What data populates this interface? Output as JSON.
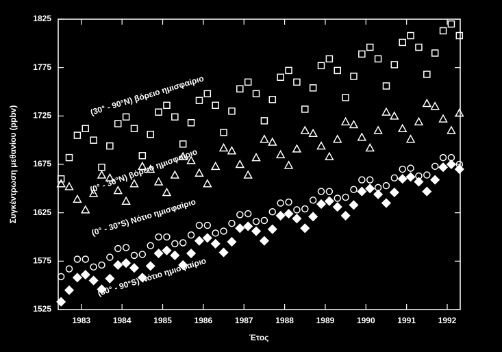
{
  "chart_data": {
    "type": "scatter",
    "x_label": "Έτος",
    "y_label": "Συγκέντρωση μεθανίου (ppbv)",
    "xlim": [
      1982.43,
      1992.32
    ],
    "ylim": [
      1525,
      1825
    ],
    "xticks": [
      1983,
      1984,
      1985,
      1986,
      1987,
      1988,
      1989,
      1990,
      1991,
      1992
    ],
    "yticks": [
      1525,
      1575,
      1625,
      1675,
      1725,
      1775,
      1825
    ],
    "x": [
      1982.5,
      1982.7,
      1982.9,
      1983.1,
      1983.3,
      1983.5,
      1983.7,
      1983.9,
      1984.1,
      1984.3,
      1984.5,
      1984.7,
      1984.9,
      1985.1,
      1985.3,
      1985.5,
      1985.7,
      1985.9,
      1986.1,
      1986.3,
      1986.5,
      1986.7,
      1986.9,
      1987.1,
      1987.3,
      1987.5,
      1987.7,
      1987.9,
      1988.1,
      1988.3,
      1988.5,
      1988.7,
      1988.9,
      1989.1,
      1989.3,
      1989.5,
      1989.7,
      1989.9,
      1990.1,
      1990.3,
      1990.5,
      1990.7,
      1990.9,
      1991.1,
      1991.3,
      1991.5,
      1991.7,
      1991.9,
      1992.1,
      1992.3
    ],
    "series": [
      {
        "name": "(30° - 90°N) βόρειο ημισφαίριο",
        "color": "#ffffff",
        "marker": "square",
        "filled": false,
        "values": [
          1660,
          1682,
          1705,
          1712,
          1700,
          1672,
          1694,
          1717,
          1724,
          1712,
          1684,
          1706,
          1729,
          1736,
          1724,
          1696,
          1718,
          1741,
          1748,
          1736,
          1708,
          1730,
          1753,
          1760,
          1748,
          1720,
          1742,
          1765,
          1772,
          1760,
          1732,
          1754,
          1777,
          1784,
          1772,
          1744,
          1766,
          1789,
          1796,
          1784,
          1756,
          1778,
          1801,
          1808,
          1796,
          1768,
          1790,
          1813,
          1820,
          1808
        ]
      },
      {
        "name": "(0° - 30°N) βόρειο ημισφαίριο",
        "color": "#ffffff",
        "marker": "triangle",
        "filled": false,
        "values": [
          1655,
          1652,
          1639,
          1628,
          1645,
          1664,
          1661,
          1648,
          1637,
          1655,
          1673,
          1670,
          1657,
          1646,
          1664,
          1683,
          1679,
          1666,
          1655,
          1673,
          1692,
          1689,
          1675,
          1664,
          1682,
          1701,
          1698,
          1685,
          1674,
          1691,
          1710,
          1707,
          1694,
          1683,
          1701,
          1719,
          1716,
          1703,
          1692,
          1710,
          1729,
          1725,
          1712,
          1701,
          1719,
          1738,
          1735,
          1722,
          1710,
          1728
        ]
      },
      {
        "name": "(0° - 30°S) Νότιο ημισφαίριο",
        "color": "#ffffff",
        "marker": "circle",
        "filled": false,
        "values": [
          1559,
          1567,
          1577,
          1577,
          1569,
          1571,
          1579,
          1588,
          1589,
          1581,
          1582,
          1591,
          1600,
          1600,
          1593,
          1594,
          1602,
          1612,
          1612,
          1604,
          1606,
          1614,
          1623,
          1624,
          1616,
          1617,
          1626,
          1635,
          1636,
          1628,
          1629,
          1638,
          1647,
          1647,
          1640,
          1641,
          1649,
          1659,
          1659,
          1651,
          1653,
          1661,
          1670,
          1671,
          1663,
          1664,
          1673,
          1682,
          1682,
          1675
        ]
      },
      {
        "name": "(30° - 90°S) Νότιο ημισφαίριο",
        "color": "#ffffff",
        "marker": "diamond",
        "filled": true,
        "values": [
          1533,
          1545,
          1558,
          1561,
          1555,
          1546,
          1557,
          1571,
          1573,
          1568,
          1558,
          1570,
          1583,
          1586,
          1581,
          1571,
          1583,
          1596,
          1599,
          1593,
          1584,
          1595,
          1609,
          1611,
          1606,
          1596,
          1608,
          1622,
          1624,
          1619,
          1609,
          1621,
          1634,
          1637,
          1631,
          1622,
          1633,
          1647,
          1650,
          1644,
          1635,
          1646,
          1660,
          1662,
          1657,
          1647,
          1659,
          1672,
          1675,
          1670
        ]
      }
    ]
  }
}
